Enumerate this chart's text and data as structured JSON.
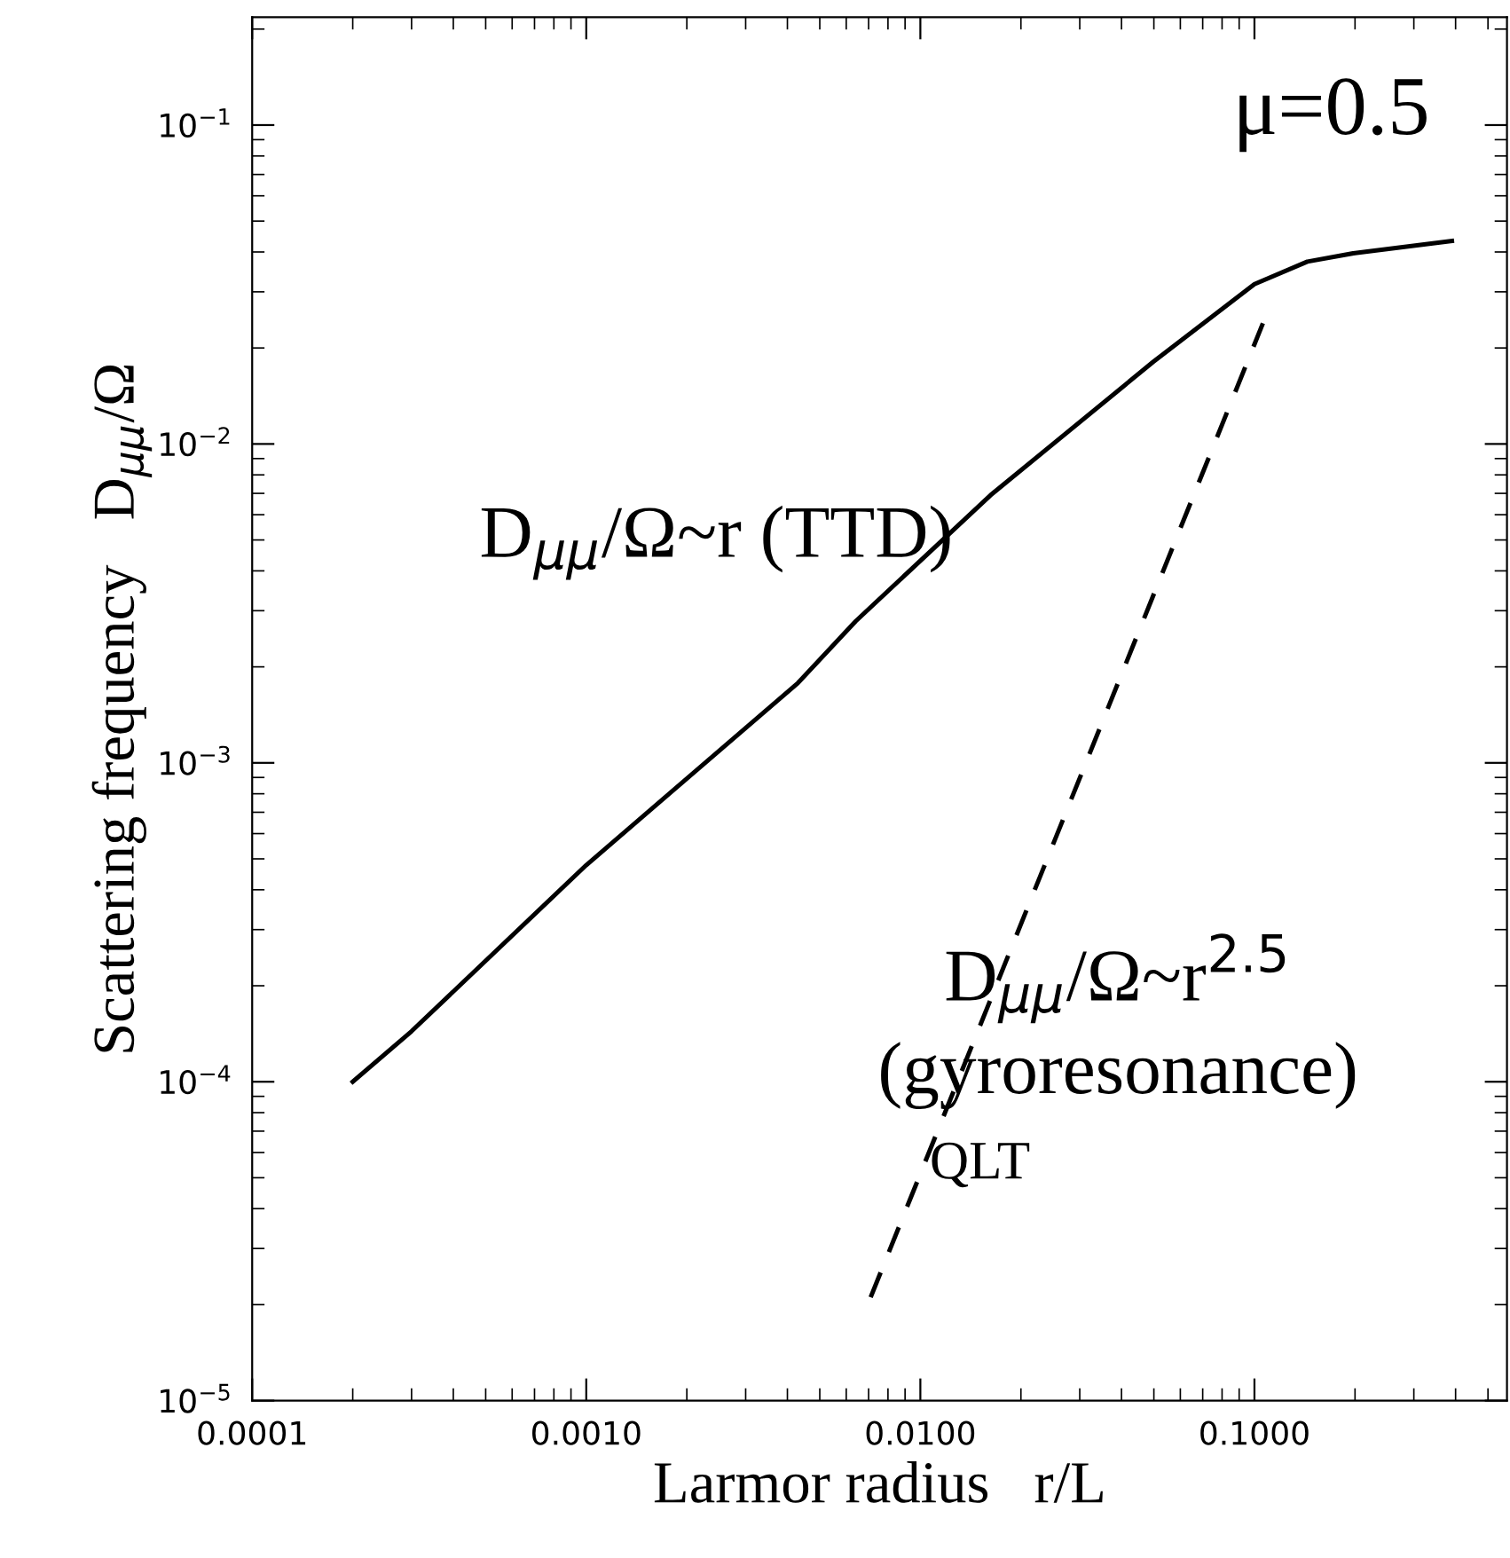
{
  "chart_data": {
    "type": "line",
    "xlabel": "Larmor radius   r/L",
    "ylabel": "Scattering frequency   D$_{μμ}$/Ω",
    "log": "xy",
    "xlim": [
      0.0001,
      0.57
    ],
    "ylim": [
      1e-05,
      0.218
    ],
    "xticks": [
      {
        "value": 0.0001,
        "label": "0.0001"
      },
      {
        "value": 0.001,
        "label": "0.0010"
      },
      {
        "value": 0.01,
        "label": "0.0100"
      },
      {
        "value": 0.1,
        "label": "0.1000"
      }
    ],
    "yticks": [
      {
        "value": 1e-05,
        "label": "10$^{−5}$"
      },
      {
        "value": 0.0001,
        "label": "10$^{−4}$"
      },
      {
        "value": 0.001,
        "label": "10$^{−3}$"
      },
      {
        "value": 0.01,
        "label": "10$^{−2}$"
      },
      {
        "value": 0.1,
        "label": "10$^{−1}$"
      }
    ],
    "grid": false,
    "series": [
      {
        "color": "#000000",
        "line_style": "solid",
        "x": [
          0.0002,
          0.0003,
          0.001,
          0.0043,
          0.0064,
          0.0162,
          0.0498,
          0.1,
          0.144,
          0.2,
          0.39
        ],
        "values": [
          0.0001,
          0.000144,
          0.000478,
          0.00178,
          0.00278,
          0.0069,
          0.0181,
          0.0317,
          0.0373,
          0.0397,
          0.0433
        ]
      },
      {
        "color": "#000000",
        "line_style": "dashed",
        "x": [
          0.0071,
          0.106
        ],
        "values": [
          2.11e-05,
          0.0239
        ]
      }
    ],
    "annotations": [
      "μ=0.5",
      "D$_{μμ}$/Ω~r (TTD)",
      "D$_{μμ}$/Ω~r$^{2.5}$",
      "(gyroresonance)",
      "QLT"
    ]
  }
}
